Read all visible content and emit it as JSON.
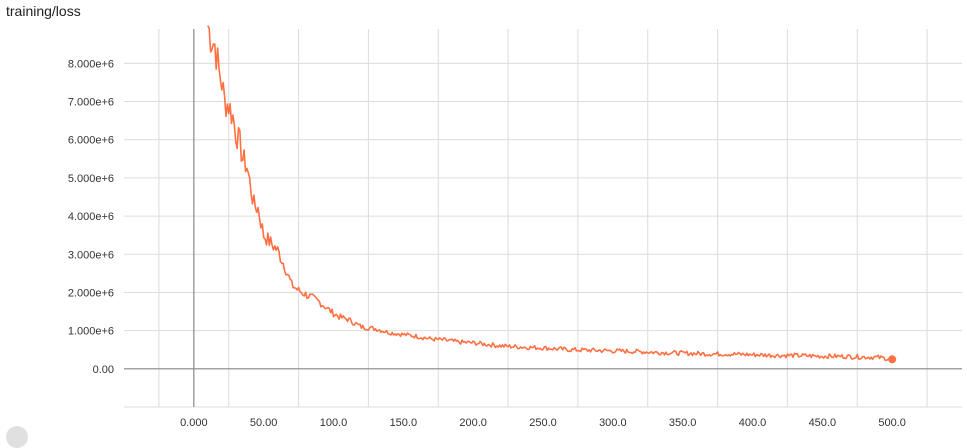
{
  "chart_data": {
    "type": "line",
    "title": "training/loss",
    "xlabel": "",
    "ylabel": "",
    "xlim": [
      -50,
      550
    ],
    "ylim": [
      -1000000,
      8900000
    ],
    "x_ticks": [
      0,
      50,
      100,
      150,
      200,
      250,
      300,
      350,
      400,
      450,
      500
    ],
    "x_tick_labels": [
      "0.000",
      "50.00",
      "100.0",
      "150.0",
      "200.0",
      "250.0",
      "300.0",
      "350.0",
      "400.0",
      "450.0",
      "500.0"
    ],
    "y_ticks": [
      0,
      1000000,
      2000000,
      3000000,
      4000000,
      5000000,
      6000000,
      7000000,
      8000000
    ],
    "y_tick_labels": [
      "0.00",
      "1.000e+6",
      "2.000e+6",
      "3.000e+6",
      "4.000e+6",
      "5.000e+6",
      "6.000e+6",
      "7.000e+6",
      "8.000e+6"
    ],
    "grid": true,
    "color": "#ff7043",
    "series": [
      {
        "x": [
          10,
          12,
          15,
          18,
          20,
          22,
          25,
          28,
          30,
          33,
          35,
          38,
          40,
          43,
          46,
          50,
          55,
          60,
          65,
          70,
          75,
          80,
          85,
          90,
          95,
          100,
          105,
          110,
          115,
          120,
          130,
          140,
          150,
          160,
          170,
          180,
          190,
          200,
          210,
          220,
          230,
          240,
          250,
          260,
          270,
          280,
          290,
          300,
          310,
          320,
          330,
          340,
          350,
          360,
          370,
          380,
          390,
          400,
          410,
          420,
          430,
          440,
          450,
          460,
          470,
          480,
          490,
          500
        ],
        "y": [
          9000000,
          8700000,
          8500000,
          7800000,
          7500000,
          7000000,
          6900000,
          6600000,
          6200000,
          5900000,
          5500000,
          5300000,
          4900000,
          4300000,
          4200000,
          3500000,
          3300000,
          3100000,
          2700000,
          2200000,
          2050000,
          1950000,
          1850000,
          1750000,
          1600000,
          1450000,
          1350000,
          1300000,
          1200000,
          1100000,
          1050000,
          950000,
          900000,
          850000,
          780000,
          750000,
          700000,
          680000,
          640000,
          600000,
          580000,
          560000,
          550000,
          520000,
          500000,
          490000,
          480000,
          470000,
          460000,
          450000,
          430000,
          420000,
          410000,
          400000,
          390000,
          390000,
          380000,
          370000,
          360000,
          350000,
          350000,
          340000,
          330000,
          330000,
          320000,
          310000,
          300000,
          250000
        ]
      }
    ]
  }
}
